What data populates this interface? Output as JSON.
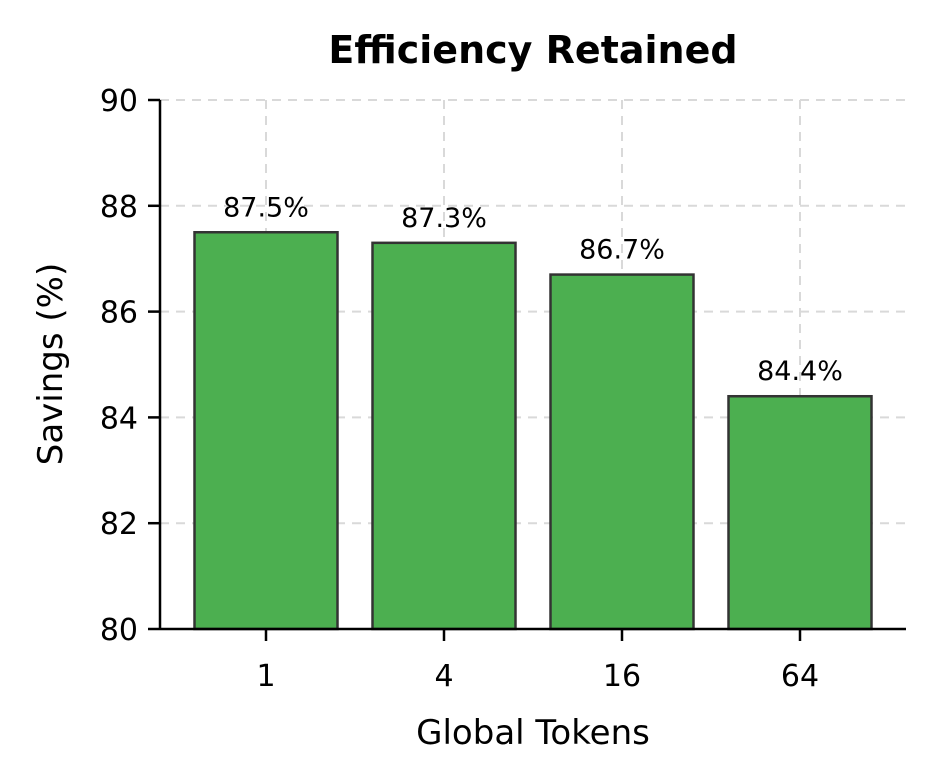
{
  "chart_data": {
    "type": "bar",
    "title": "Efficiency Retained",
    "xlabel": "Global Tokens",
    "ylabel": "Savings (%)",
    "categories": [
      "1",
      "4",
      "16",
      "64"
    ],
    "values": [
      87.5,
      87.3,
      86.7,
      84.4
    ],
    "data_labels": [
      "87.5%",
      "87.3%",
      "86.7%",
      "84.4%"
    ],
    "ylim": [
      80,
      90
    ],
    "yticks": [
      80,
      82,
      84,
      86,
      88,
      90
    ],
    "grid": true,
    "bar_color": "#4caf50",
    "edge_color": "#333333"
  }
}
